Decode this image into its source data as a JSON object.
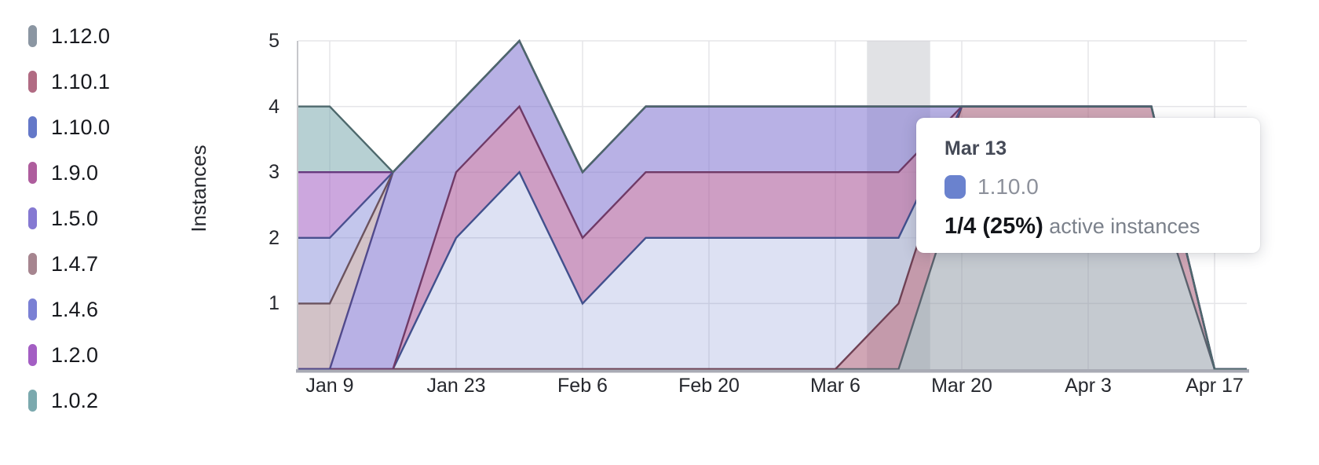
{
  "tooltip": {
    "date": "Mar 13",
    "series": "1.10.0",
    "series_color": "#6a82ce",
    "stat": "1/4 (25%)",
    "stat_label": "active instances"
  },
  "chart_data": {
    "type": "area",
    "stacked": true,
    "title": "",
    "ylabel": "Instances",
    "ylim": [
      0,
      5
    ],
    "y_ticks": [
      "1",
      "2",
      "3",
      "4",
      "5"
    ],
    "x_tick_labels": [
      "Jan 9",
      "Jan 23",
      "Feb 6",
      "Feb 20",
      "Mar 6",
      "Mar 20",
      "Apr 3",
      "Apr 17"
    ],
    "x": [
      "Jan 2",
      "Jan 9",
      "Jan 16",
      "Jan 23",
      "Jan 30",
      "Feb 6",
      "Feb 13",
      "Feb 20",
      "Feb 27",
      "Mar 6",
      "Mar 13",
      "Mar 20",
      "Mar 27",
      "Apr 3",
      "Apr 10",
      "Apr 17",
      "Apr 24"
    ],
    "highlighted_x": "Mar 13",
    "legend_position": "left",
    "grid": true,
    "series": [
      {
        "name": "1.12.0",
        "color": "#8b96a2",
        "stroke": "#5a626d",
        "fill_alpha": 0.5,
        "values": [
          0,
          0,
          0,
          0,
          0,
          0,
          0,
          0,
          0,
          0,
          0,
          3,
          3,
          3,
          3,
          0,
          0
        ]
      },
      {
        "name": "1.10.1",
        "color": "#b16b83",
        "stroke": "#6f4154",
        "fill_alpha": 0.6,
        "values": [
          0,
          0,
          0,
          0,
          0,
          0,
          0,
          0,
          0,
          0,
          1,
          1,
          1,
          1,
          1,
          0,
          0
        ]
      },
      {
        "name": "1.10.0",
        "color": "#6478c8",
        "stroke": "#41508d",
        "fill_alpha": 0.22,
        "values": [
          0,
          0,
          0,
          2,
          3,
          1,
          2,
          2,
          2,
          2,
          1,
          0,
          0,
          0,
          0,
          0,
          0
        ]
      },
      {
        "name": "1.9.0",
        "color": "#ae5d9d",
        "stroke": "#6f3a67",
        "fill_alpha": 0.6,
        "values": [
          0,
          0,
          0,
          1,
          1,
          1,
          1,
          1,
          1,
          1,
          1,
          0,
          0,
          0,
          0,
          0,
          0
        ]
      },
      {
        "name": "1.5.0",
        "color": "#8579d2",
        "stroke": "#514a8c",
        "fill_alpha": 0.58,
        "values": [
          0,
          0,
          3,
          1,
          1,
          1,
          1,
          1,
          1,
          1,
          1,
          0,
          0,
          0,
          0,
          0,
          0
        ]
      },
      {
        "name": "1.4.7",
        "color": "#a6858f",
        "stroke": "#6b535e",
        "fill_alpha": 0.5,
        "values": [
          1,
          1,
          0,
          0,
          0,
          0,
          0,
          0,
          0,
          0,
          0,
          0,
          0,
          0,
          0,
          0,
          0
        ]
      },
      {
        "name": "1.4.6",
        "color": "#7a80d4",
        "stroke": "#4a508f",
        "fill_alpha": 0.45,
        "values": [
          1,
          1,
          0,
          0,
          0,
          0,
          0,
          0,
          0,
          0,
          0,
          0,
          0,
          0,
          0,
          0,
          0
        ]
      },
      {
        "name": "1.2.0",
        "color": "#a35ec3",
        "stroke": "#66397e",
        "fill_alpha": 0.55,
        "values": [
          1,
          1,
          0,
          0,
          0,
          0,
          0,
          0,
          0,
          0,
          0,
          0,
          0,
          0,
          0,
          0,
          0
        ]
      },
      {
        "name": "1.0.2",
        "color": "#7ba9ae",
        "stroke": "#4d686c",
        "fill_alpha": 0.55,
        "values": [
          1,
          1,
          0,
          0,
          0,
          0,
          0,
          0,
          0,
          0,
          0,
          0,
          0,
          0,
          0,
          0,
          0
        ]
      }
    ],
    "colors": {
      "grid": "#e5e5e8",
      "axis_left": "#c6c7cb",
      "axis_bottom": "#a9abb5",
      "hover_band": "#cfd0d5"
    }
  }
}
